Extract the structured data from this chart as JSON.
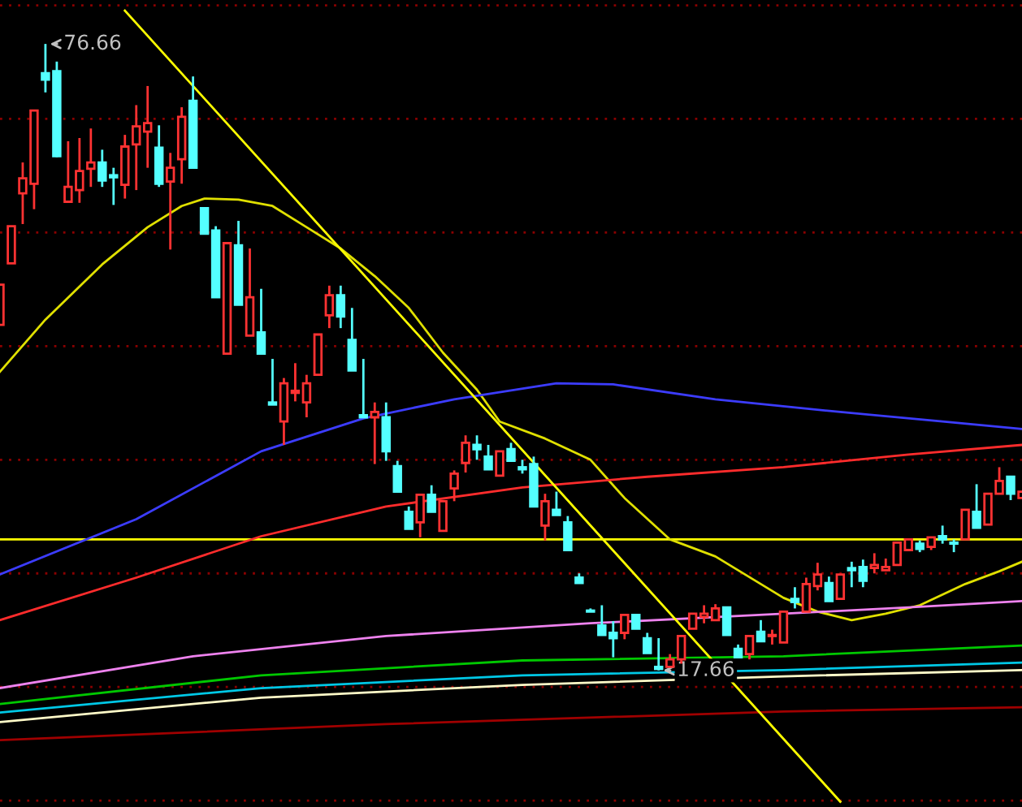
{
  "chart_data": {
    "type": "candlestick",
    "categories": [
      null,
      null,
      null,
      null,
      null,
      null,
      null,
      null,
      null,
      null,
      null,
      null,
      null,
      null,
      null,
      null,
      null,
      null,
      null,
      null,
      null,
      null,
      null,
      null,
      null,
      null,
      null,
      null,
      null,
      null,
      null,
      null,
      null,
      null,
      null,
      null,
      null,
      null,
      null,
      null,
      null,
      null,
      null,
      null,
      null,
      null,
      null,
      null,
      null,
      null,
      null,
      null,
      null,
      null,
      null,
      null,
      null,
      null,
      null,
      null,
      null,
      null,
      null,
      null,
      null,
      null,
      null,
      null,
      null,
      null,
      null,
      null,
      null,
      null,
      null,
      null,
      null,
      null,
      null,
      null,
      null,
      null,
      null,
      null,
      null,
      null,
      null,
      null,
      null,
      null,
      null
    ],
    "ohlc": [
      [
        50.2,
        54.0,
        50.2,
        54.0
      ],
      [
        56.0,
        59.5,
        56.0,
        59.5
      ],
      [
        62.6,
        65.5,
        59.7,
        64.0
      ],
      [
        63.5,
        70.4,
        61.1,
        70.4
      ],
      [
        73.9,
        76.66,
        72.1,
        73.3
      ],
      [
        74.1,
        75.0,
        66.0,
        66.1
      ],
      [
        61.8,
        67.5,
        61.8,
        63.2
      ],
      [
        62.9,
        67.8,
        61.7,
        64.7
      ],
      [
        64.9,
        68.7,
        63.2,
        65.5
      ],
      [
        65.5,
        66.7,
        63.2,
        63.8
      ],
      [
        64.3,
        65.0,
        61.5,
        64.1
      ],
      [
        63.4,
        68.1,
        62.1,
        67.0
      ],
      [
        67.2,
        70.9,
        62.9,
        68.9
      ],
      [
        68.4,
        72.7,
        65.0,
        69.2
      ],
      [
        66.9,
        69.0,
        63.2,
        63.5
      ],
      [
        63.7,
        66.4,
        57.3,
        65.0
      ],
      [
        65.8,
        70.7,
        63.5,
        69.8
      ],
      [
        71.3,
        73.6,
        65.0,
        65.0
      ],
      [
        61.2,
        61.2,
        58.8,
        58.8
      ],
      [
        59.1,
        59.5,
        52.8,
        52.8
      ],
      [
        47.5,
        57.9,
        47.5,
        57.9
      ],
      [
        57.7,
        60.0,
        52.1,
        52.1
      ],
      [
        49.2,
        57.4,
        49.2,
        52.8
      ],
      [
        49.5,
        53.6,
        47.5,
        47.5
      ],
      [
        42.9,
        47.0,
        42.7,
        42.7
      ],
      [
        41.1,
        45.2,
        38.9,
        44.7
      ],
      [
        43.8,
        46.6,
        43.0,
        44.0
      ],
      [
        42.9,
        45.5,
        41.5,
        44.7
      ],
      [
        45.5,
        49.3,
        45.5,
        49.3
      ],
      [
        51.1,
        53.9,
        49.9,
        53.0
      ],
      [
        53.0,
        53.9,
        49.9,
        51.0
      ],
      [
        48.8,
        51.8,
        45.9,
        45.9
      ],
      [
        41.7,
        47.0,
        41.5,
        41.5
      ],
      [
        41.5,
        42.9,
        37.1,
        42.0
      ],
      [
        41.5,
        42.9,
        37.4,
        38.3
      ],
      [
        36.9,
        37.4,
        34.5,
        34.5
      ],
      [
        32.6,
        33.1,
        31.0,
        31.0
      ],
      [
        31.6,
        34.2,
        30.2,
        34.2
      ],
      [
        34.2,
        35.1,
        32.6,
        32.6
      ],
      [
        30.8,
        33.6,
        30.8,
        33.6
      ],
      [
        34.8,
        36.5,
        33.6,
        36.2
      ],
      [
        37.2,
        39.8,
        36.3,
        39.1
      ],
      [
        38.9,
        39.8,
        37.5,
        38.5
      ],
      [
        37.8,
        38.9,
        36.6,
        36.6
      ],
      [
        36.0,
        38.3,
        36.0,
        38.3
      ],
      [
        38.5,
        39.1,
        37.4,
        37.4
      ],
      [
        36.8,
        37.5,
        36.2,
        36.6
      ],
      [
        37.1,
        37.8,
        33.1,
        33.1
      ],
      [
        31.3,
        34.3,
        29.9,
        33.6
      ],
      [
        32.8,
        34.5,
        32.3,
        32.3
      ],
      [
        31.6,
        32.2,
        29.0,
        29.0
      ],
      [
        26.4,
        26.8,
        25.9,
        25.9
      ],
      [
        23.3,
        23.5,
        23.2,
        23.2
      ],
      [
        21.9,
        23.8,
        21.0,
        21.0
      ],
      [
        21.2,
        22.3,
        18.9,
        20.7
      ],
      [
        21.2,
        22.9,
        20.6,
        22.9
      ],
      [
        22.9,
        22.9,
        21.6,
        21.6
      ],
      [
        20.7,
        21.2,
        19.3,
        19.3
      ],
      [
        18.0,
        20.7,
        17.66,
        17.8
      ],
      [
        18.0,
        19.2,
        18.0,
        18.7
      ],
      [
        18.7,
        20.9,
        18.3,
        20.9
      ],
      [
        21.6,
        23.0,
        21.6,
        23.0
      ],
      [
        22.7,
        23.8,
        22.1,
        23.0
      ],
      [
        22.4,
        23.9,
        22.4,
        23.5
      ],
      [
        23.6,
        23.6,
        21.0,
        21.0
      ],
      [
        19.7,
        20.1,
        18.9,
        18.9
      ],
      [
        19.2,
        20.9,
        18.7,
        20.9
      ],
      [
        21.3,
        22.4,
        20.4,
        20.4
      ],
      [
        20.9,
        21.5,
        20.1,
        21.0
      ],
      [
        20.3,
        23.2,
        20.3,
        23.2
      ],
      [
        24.4,
        25.5,
        23.5,
        24.1
      ],
      [
        23.2,
        26.4,
        23.2,
        25.8
      ],
      [
        25.6,
        27.8,
        25.2,
        26.7
      ],
      [
        25.9,
        26.5,
        24.2,
        24.2
      ],
      [
        24.4,
        26.7,
        24.4,
        26.7
      ],
      [
        27.3,
        27.9,
        25.5,
        27.1
      ],
      [
        27.4,
        28.1,
        25.5,
        26.1
      ],
      [
        27.3,
        28.7,
        26.8,
        27.6
      ],
      [
        27.1,
        28.2,
        27.1,
        27.4
      ],
      [
        27.6,
        29.7,
        27.6,
        29.7
      ],
      [
        29.0,
        30.0,
        29.0,
        30.0
      ],
      [
        29.6,
        29.9,
        28.8,
        29.1
      ],
      [
        29.3,
        30.2,
        29.0,
        30.2
      ],
      [
        30.3,
        31.3,
        29.6,
        30.0
      ],
      [
        29.7,
        30.0,
        28.8,
        29.6
      ],
      [
        30.0,
        32.8,
        30.0,
        32.8
      ],
      [
        32.6,
        35.2,
        31.1,
        31.1
      ],
      [
        31.4,
        34.3,
        31.4,
        34.3
      ],
      [
        34.3,
        36.8,
        34.3,
        35.5
      ],
      [
        35.9,
        35.9,
        33.7,
        34.3
      ],
      [
        33.9,
        34.5,
        33.9,
        34.5
      ]
    ],
    "series": [
      {
        "type": "line",
        "color": "#e0e000",
        "values": [
          45.8,
          null,
          null,
          null,
          50.7,
          null,
          null,
          null,
          null,
          55.9,
          null,
          null,
          null,
          59.4,
          null,
          null,
          61.4,
          null,
          62.1,
          null,
          null,
          62.0,
          null,
          null,
          61.4,
          null,
          null,
          59.4,
          null,
          null,
          57.4,
          null,
          null,
          54.8,
          null,
          null,
          51.8,
          null,
          null,
          47.6,
          null,
          null,
          44.1,
          null,
          41.1,
          null,
          null,
          null,
          39.5,
          null,
          null,
          null,
          37.5,
          null,
          null,
          33.9,
          null,
          null,
          null,
          30.0,
          null,
          null,
          null,
          28.4,
          null,
          null,
          null,
          25.8,
          null,
          24.5,
          null,
          null,
          23.2,
          null,
          null,
          22.4,
          null,
          null,
          23.0,
          null,
          null,
          23.8,
          null,
          null,
          null,
          25.8,
          null,
          null,
          27.0,
          null,
          27.9
        ]
      },
      {
        "type": "line",
        "color": "#3c3cff",
        "values": [
          26.7,
          null,
          null,
          null,
          null,
          null,
          null,
          null,
          null,
          null,
          null,
          null,
          31.9,
          null,
          null,
          null,
          null,
          null,
          null,
          null,
          null,
          null,
          null,
          38.3,
          null,
          null,
          null,
          null,
          null,
          null,
          null,
          null,
          41.4,
          null,
          null,
          null,
          null,
          null,
          null,
          null,
          43.2,
          null,
          null,
          null,
          null,
          null,
          null,
          null,
          null,
          44.7,
          null,
          null,
          null,
          null,
          44.6,
          null,
          null,
          null,
          null,
          null,
          null,
          null,
          null,
          43.2,
          null,
          null,
          null,
          null,
          null,
          null,
          null,
          null,
          null,
          null,
          42.0,
          null,
          null,
          null,
          null,
          null,
          null,
          null,
          null,
          41.1,
          null,
          null,
          null,
          null,
          null,
          null,
          40.4
        ]
      },
      {
        "type": "line",
        "color": "#ff2c2c",
        "values": [
          22.4,
          null,
          null,
          null,
          null,
          null,
          null,
          null,
          null,
          null,
          null,
          null,
          26.4,
          null,
          null,
          null,
          null,
          null,
          null,
          null,
          null,
          null,
          null,
          30.3,
          null,
          null,
          null,
          null,
          null,
          null,
          null,
          null,
          null,
          null,
          33.1,
          null,
          null,
          null,
          null,
          null,
          null,
          null,
          null,
          null,
          null,
          null,
          34.9,
          null,
          null,
          null,
          null,
          null,
          null,
          null,
          null,
          null,
          null,
          35.9,
          null,
          null,
          null,
          null,
          null,
          null,
          null,
          null,
          null,
          null,
          null,
          36.8,
          null,
          null,
          null,
          null,
          null,
          null,
          null,
          null,
          null,
          null,
          38.0,
          null,
          null,
          null,
          null,
          null,
          null,
          null,
          null,
          null,
          38.9
        ]
      },
      {
        "type": "line",
        "color": "#ee82ee",
        "values": [
          16.0,
          null,
          null,
          null,
          null,
          null,
          null,
          null,
          null,
          null,
          null,
          null,
          null,
          null,
          null,
          null,
          null,
          19.0,
          null,
          null,
          null,
          null,
          null,
          null,
          null,
          null,
          null,
          null,
          null,
          null,
          null,
          null,
          null,
          null,
          20.9,
          null,
          null,
          null,
          null,
          null,
          null,
          null,
          null,
          null,
          null,
          null,
          null,
          null,
          null,
          null,
          null,
          null,
          22.1,
          null,
          null,
          null,
          null,
          null,
          null,
          null,
          null,
          null,
          null,
          null,
          null,
          null,
          null,
          null,
          null,
          23.0,
          null,
          null,
          null,
          null,
          null,
          null,
          null,
          null,
          null,
          null,
          23.6,
          null,
          null,
          null,
          null,
          null,
          null,
          null,
          null,
          null,
          24.2
        ]
      },
      {
        "type": "line",
        "color": "#00c800",
        "values": [
          14.5,
          null,
          null,
          null,
          null,
          null,
          null,
          null,
          null,
          null,
          null,
          null,
          null,
          null,
          null,
          null,
          null,
          null,
          null,
          null,
          null,
          null,
          null,
          17.2,
          null,
          null,
          null,
          null,
          null,
          null,
          null,
          null,
          null,
          null,
          null,
          null,
          null,
          null,
          null,
          null,
          null,
          null,
          null,
          null,
          null,
          null,
          18.6,
          null,
          null,
          null,
          null,
          null,
          null,
          null,
          null,
          null,
          null,
          null,
          null,
          null,
          null,
          null,
          null,
          null,
          null,
          null,
          null,
          null,
          null,
          19.0,
          null,
          null,
          null,
          null,
          null,
          null,
          null,
          null,
          null,
          null,
          null,
          null,
          null,
          null,
          null,
          null,
          null,
          null,
          null,
          null,
          20.0
        ]
      },
      {
        "type": "line",
        "color": "#00c8e6",
        "values": [
          13.7,
          null,
          null,
          null,
          null,
          null,
          null,
          null,
          null,
          null,
          null,
          null,
          null,
          null,
          null,
          null,
          null,
          null,
          null,
          null,
          null,
          null,
          null,
          16.0,
          null,
          null,
          null,
          null,
          null,
          null,
          null,
          null,
          null,
          null,
          null,
          null,
          null,
          null,
          null,
          null,
          null,
          null,
          null,
          null,
          null,
          null,
          17.2,
          null,
          null,
          null,
          null,
          null,
          null,
          null,
          null,
          null,
          null,
          null,
          null,
          null,
          null,
          null,
          null,
          null,
          null,
          null,
          null,
          null,
          null,
          17.7,
          null,
          null,
          null,
          null,
          null,
          null,
          null,
          null,
          null,
          null,
          null,
          null,
          null,
          null,
          null,
          null,
          null,
          null,
          null,
          null,
          18.4
        ]
      },
      {
        "type": "line",
        "color": "#fffbc8",
        "values": [
          12.8,
          null,
          null,
          null,
          null,
          null,
          null,
          null,
          null,
          null,
          null,
          null,
          null,
          null,
          null,
          null,
          null,
          null,
          null,
          null,
          null,
          null,
          null,
          15.1,
          null,
          null,
          null,
          null,
          null,
          null,
          null,
          null,
          null,
          null,
          null,
          null,
          null,
          null,
          null,
          null,
          null,
          null,
          null,
          null,
          null,
          null,
          16.3,
          null,
          null,
          null,
          null,
          null,
          null,
          null,
          null,
          null,
          null,
          null,
          null,
          null,
          null,
          null,
          null,
          null,
          null,
          null,
          null,
          null,
          null,
          17.1,
          null,
          null,
          null,
          null,
          null,
          null,
          null,
          null,
          null,
          null,
          null,
          null,
          null,
          null,
          null,
          null,
          null,
          null,
          null,
          null,
          17.7
        ]
      },
      {
        "type": "line",
        "color": "#a00000",
        "values": [
          11.1,
          null,
          null,
          null,
          null,
          null,
          null,
          null,
          null,
          null,
          null,
          null,
          null,
          null,
          null,
          null,
          null,
          null,
          null,
          null,
          null,
          null,
          null,
          null,
          null,
          null,
          null,
          null,
          null,
          null,
          null,
          null,
          null,
          null,
          12.6,
          null,
          null,
          null,
          null,
          null,
          null,
          null,
          null,
          null,
          null,
          null,
          null,
          null,
          null,
          null,
          null,
          null,
          null,
          null,
          null,
          null,
          null,
          null,
          null,
          null,
          null,
          null,
          null,
          null,
          null,
          null,
          null,
          null,
          null,
          13.8,
          null,
          null,
          null,
          null,
          null,
          null,
          null,
          null,
          null,
          null,
          null,
          null,
          null,
          null,
          null,
          null,
          null,
          null,
          null,
          null,
          14.2
        ]
      },
      {
        "type": "line",
        "color": "#ffff00",
        "values": [
          null,
          null,
          null,
          null,
          null,
          null,
          null,
          null,
          null,
          null,
          null,
          79.8,
          null,
          null,
          null,
          null,
          null,
          null,
          null,
          null,
          null,
          null,
          null,
          null,
          null,
          null,
          null,
          null,
          null,
          null,
          null,
          null,
          null,
          null,
          null,
          null,
          null,
          null,
          null,
          null,
          null,
          null,
          null,
          null,
          null,
          null,
          null,
          null,
          null,
          null,
          null,
          null,
          null,
          null,
          null,
          null,
          null,
          null,
          null,
          null,
          null,
          null,
          null,
          null,
          null,
          null,
          null,
          null,
          null,
          null,
          null,
          null,
          null,
          null,
          5.3,
          null,
          null,
          null,
          null,
          null,
          null,
          null,
          null,
          null,
          null,
          null,
          null,
          null,
          null,
          null,
          null
        ]
      }
    ],
    "ref_lines": [
      {
        "axis": "y",
        "value": 30.0,
        "color": "#ffff00"
      }
    ],
    "annotations": [
      "76.66",
      "17.66"
    ],
    "ylim": [
      4.8,
      80.8
    ],
    "yticks": [
      {
        "value": 80.3,
        "label": null
      },
      {
        "value": 69.6,
        "label": null
      },
      {
        "value": 58.9,
        "label": null
      },
      {
        "value": 48.2,
        "label": null
      },
      {
        "value": 37.5,
        "label": null
      },
      {
        "value": 26.8,
        "label": null
      },
      {
        "value": 16.1,
        "label": null
      },
      {
        "value": 5.4,
        "label": null
      }
    ],
    "grid": "y",
    "legend": false
  }
}
